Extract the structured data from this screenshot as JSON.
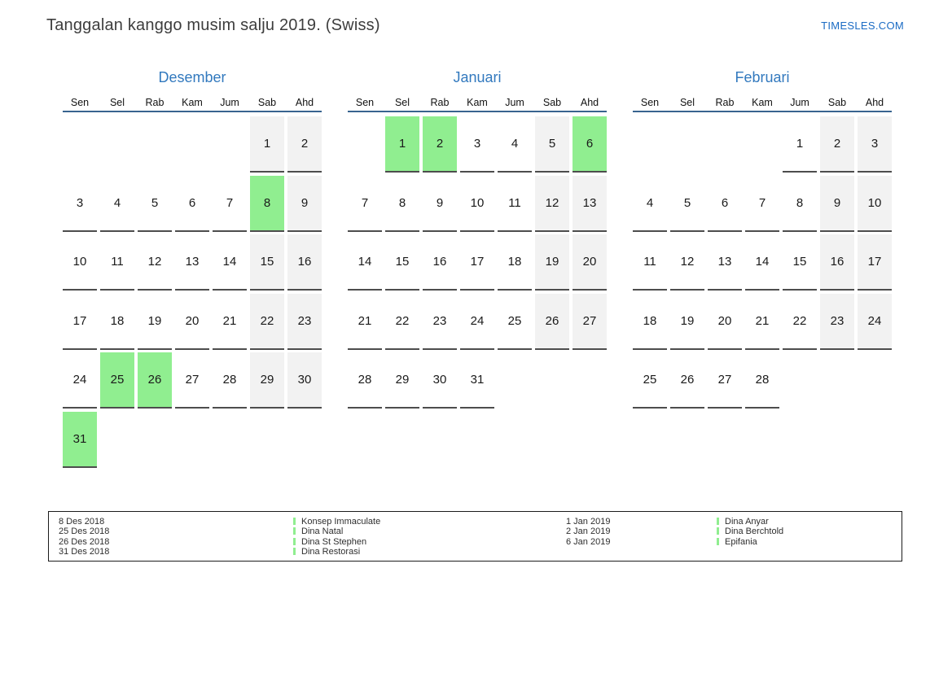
{
  "page": {
    "title": "Tanggalan kanggo musim salju 2019. (Swiss)",
    "logo": "TIMESLES.COM"
  },
  "colors": {
    "accent_blue": "#3279be",
    "logo_blue": "#1a6bc4",
    "header_line": "#38648f",
    "highlight_green": "#90ee90",
    "weekend_gray": "#f2f2f2"
  },
  "weekdays": [
    "Sen",
    "Sel",
    "Rab",
    "Kam",
    "Jum",
    "Sab",
    "Ahd"
  ],
  "months": [
    {
      "name": "Desember",
      "weeks": [
        [
          null,
          null,
          null,
          null,
          null,
          {
            "d": 1,
            "t": "we"
          },
          {
            "d": 2,
            "t": "we"
          }
        ],
        [
          {
            "d": 3
          },
          {
            "d": 4
          },
          {
            "d": 5
          },
          {
            "d": 6
          },
          {
            "d": 7
          },
          {
            "d": 8,
            "t": "hl"
          },
          {
            "d": 9,
            "t": "we"
          }
        ],
        [
          {
            "d": 10
          },
          {
            "d": 11
          },
          {
            "d": 12
          },
          {
            "d": 13
          },
          {
            "d": 14
          },
          {
            "d": 15,
            "t": "we"
          },
          {
            "d": 16,
            "t": "we"
          }
        ],
        [
          {
            "d": 17
          },
          {
            "d": 18
          },
          {
            "d": 19
          },
          {
            "d": 20
          },
          {
            "d": 21
          },
          {
            "d": 22,
            "t": "we"
          },
          {
            "d": 23,
            "t": "we"
          }
        ],
        [
          {
            "d": 24
          },
          {
            "d": 25,
            "t": "hl"
          },
          {
            "d": 26,
            "t": "hl"
          },
          {
            "d": 27
          },
          {
            "d": 28
          },
          {
            "d": 29,
            "t": "we"
          },
          {
            "d": 30,
            "t": "we"
          }
        ],
        [
          {
            "d": 31,
            "t": "hl"
          },
          null,
          null,
          null,
          null,
          null,
          null
        ]
      ]
    },
    {
      "name": "Januari",
      "weeks": [
        [
          null,
          {
            "d": 1,
            "t": "hl"
          },
          {
            "d": 2,
            "t": "hl"
          },
          {
            "d": 3
          },
          {
            "d": 4
          },
          {
            "d": 5,
            "t": "we"
          },
          {
            "d": 6,
            "t": "hl"
          }
        ],
        [
          {
            "d": 7
          },
          {
            "d": 8
          },
          {
            "d": 9
          },
          {
            "d": 10
          },
          {
            "d": 11
          },
          {
            "d": 12,
            "t": "we"
          },
          {
            "d": 13,
            "t": "we"
          }
        ],
        [
          {
            "d": 14
          },
          {
            "d": 15
          },
          {
            "d": 16
          },
          {
            "d": 17
          },
          {
            "d": 18
          },
          {
            "d": 19,
            "t": "we"
          },
          {
            "d": 20,
            "t": "we"
          }
        ],
        [
          {
            "d": 21
          },
          {
            "d": 22
          },
          {
            "d": 23
          },
          {
            "d": 24
          },
          {
            "d": 25
          },
          {
            "d": 26,
            "t": "we"
          },
          {
            "d": 27,
            "t": "we"
          }
        ],
        [
          {
            "d": 28
          },
          {
            "d": 29
          },
          {
            "d": 30
          },
          {
            "d": 31
          },
          null,
          null,
          null
        ]
      ]
    },
    {
      "name": "Februari",
      "weeks": [
        [
          null,
          null,
          null,
          null,
          {
            "d": 1
          },
          {
            "d": 2,
            "t": "we"
          },
          {
            "d": 3,
            "t": "we"
          }
        ],
        [
          {
            "d": 4
          },
          {
            "d": 5
          },
          {
            "d": 6
          },
          {
            "d": 7
          },
          {
            "d": 8
          },
          {
            "d": 9,
            "t": "we"
          },
          {
            "d": 10,
            "t": "we"
          }
        ],
        [
          {
            "d": 11
          },
          {
            "d": 12
          },
          {
            "d": 13
          },
          {
            "d": 14
          },
          {
            "d": 15
          },
          {
            "d": 16,
            "t": "we"
          },
          {
            "d": 17,
            "t": "we"
          }
        ],
        [
          {
            "d": 18
          },
          {
            "d": 19
          },
          {
            "d": 20
          },
          {
            "d": 21
          },
          {
            "d": 22
          },
          {
            "d": 23,
            "t": "we"
          },
          {
            "d": 24,
            "t": "we"
          }
        ],
        [
          {
            "d": 25
          },
          {
            "d": 26
          },
          {
            "d": 27
          },
          {
            "d": 28
          },
          null,
          null,
          null
        ]
      ]
    }
  ],
  "legend": {
    "groups": [
      {
        "entries": [
          {
            "date": "8 Des 2018",
            "name": "Konsep Immaculate"
          },
          {
            "date": "25 Des 2018",
            "name": "Dina Natal"
          },
          {
            "date": "26 Des 2018",
            "name": "Dina St Stephen"
          },
          {
            "date": "31 Des 2018",
            "name": "Dina Restorasi"
          }
        ]
      },
      {
        "entries": [
          {
            "date": "1 Jan 2019",
            "name": "Dina Anyar"
          },
          {
            "date": "2 Jan 2019",
            "name": "Dina Berchtold"
          },
          {
            "date": "6 Jan 2019",
            "name": "Epifania"
          }
        ]
      }
    ]
  }
}
